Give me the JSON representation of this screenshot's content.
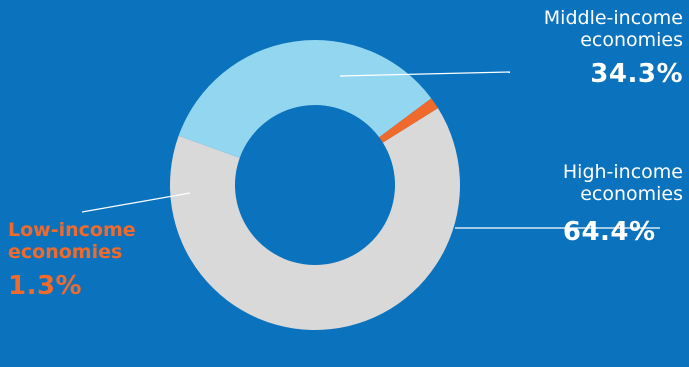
{
  "chart_data": {
    "type": "pie",
    "donut": true,
    "slices": [
      {
        "label": "High-income economies",
        "name_line1": "High-income",
        "name_line2": "economies",
        "value": 64.4,
        "value_label": "64.4%",
        "color": "#d9d9d9"
      },
      {
        "label": "Middle-income economies",
        "name_line1": "Middle-income",
        "name_line2": "economies",
        "value": 34.3,
        "value_label": "34.3%",
        "color": "#92d6ef"
      },
      {
        "label": "Low-income economies",
        "name_line1": "Low-income",
        "name_line2": "economies",
        "value": 1.3,
        "value_label": "1.3%",
        "color": "#ef6a2b"
      }
    ],
    "background": "#0b72bd",
    "label_color_light": "#ffffff",
    "label_color_low": "#ef6a2b"
  }
}
